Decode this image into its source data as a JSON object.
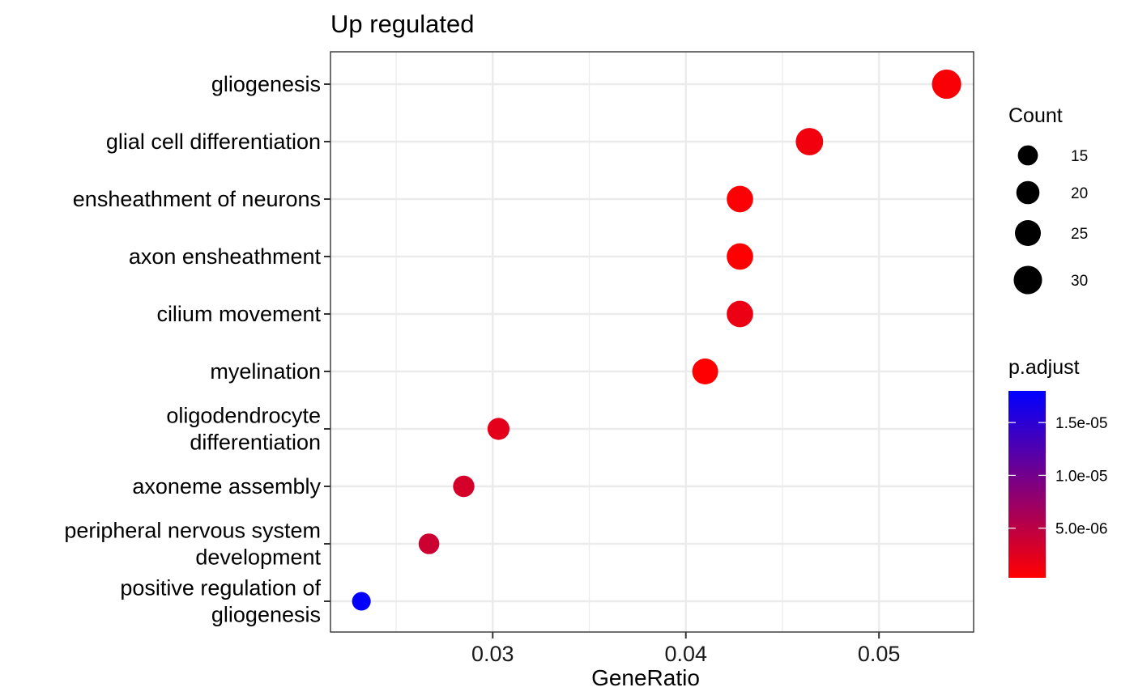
{
  "chart_data": {
    "type": "scatter",
    "title": "Up regulated",
    "xlabel": "GeneRatio",
    "ylabel": "",
    "xlim": [
      0.0216,
      0.0549
    ],
    "x_ticks": [
      0.03,
      0.04,
      0.05
    ],
    "x_tick_labels": [
      "0.03",
      "0.04",
      "0.05"
    ],
    "grid": true,
    "categories": [
      [
        "gliogenesis"
      ],
      [
        "glial cell differentiation"
      ],
      [
        "ensheathment of neurons"
      ],
      [
        "axon ensheathment"
      ],
      [
        "cilium movement"
      ],
      [
        "myelination"
      ],
      [
        "oligodendrocyte",
        "differentiation"
      ],
      [
        "axoneme assembly"
      ],
      [
        "peripheral nervous system",
        "development"
      ],
      [
        "positive regulation of",
        "gliogenesis"
      ]
    ],
    "points": [
      {
        "gene_ratio": 0.0535,
        "count": 32,
        "p_adjust": 7e-07
      },
      {
        "gene_ratio": 0.0464,
        "count": 28,
        "p_adjust": 1.2e-06
      },
      {
        "gene_ratio": 0.0428,
        "count": 26,
        "p_adjust": 6e-07
      },
      {
        "gene_ratio": 0.0428,
        "count": 26,
        "p_adjust": 4e-07
      },
      {
        "gene_ratio": 0.0428,
        "count": 26,
        "p_adjust": 1.6e-06
      },
      {
        "gene_ratio": 0.041,
        "count": 25,
        "p_adjust": 4e-07
      },
      {
        "gene_ratio": 0.0303,
        "count": 18,
        "p_adjust": 2.2e-06
      },
      {
        "gene_ratio": 0.0285,
        "count": 17,
        "p_adjust": 3.2e-06
      },
      {
        "gene_ratio": 0.0267,
        "count": 16,
        "p_adjust": 3.8e-06
      },
      {
        "gene_ratio": 0.0232,
        "count": 13,
        "p_adjust": 1.78e-05
      }
    ],
    "size_legend": {
      "title": "Count",
      "values": [
        15,
        20,
        25,
        30
      ],
      "labels": [
        "15",
        "20",
        "25",
        "30"
      ]
    },
    "color_legend": {
      "title": "p.adjust",
      "range": [
        3e-07,
        1.8e-05
      ],
      "breaks": [
        5e-06,
        1e-05,
        1.5e-05
      ],
      "labels": [
        "5.0e-06",
        "1.0e-05",
        "1.5e-05"
      ],
      "low_color": "#ff0000",
      "high_color": "#0000ff"
    },
    "legend_position": "right"
  }
}
